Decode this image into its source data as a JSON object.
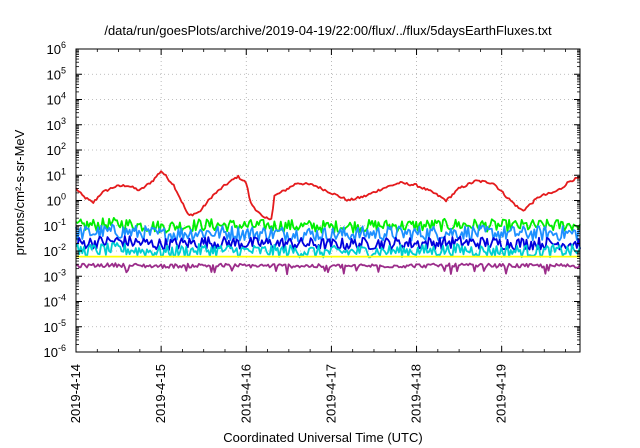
{
  "chart_data": {
    "type": "line",
    "title": "/data/run/goesPlots/archive/2019-04-19/22:00/flux/../flux/5daysEarthFluxes.txt",
    "xlabel": "Coordinated Universal Time (UTC)",
    "ylabel": "protons/cm²-s-sr-MeV",
    "y_scale": "log",
    "ylim": [
      1e-06,
      1000000.0
    ],
    "xlim": [
      "2019-04-14",
      "2019-04-19 22:00"
    ],
    "x_days_span": 5.92,
    "grid": true,
    "legend": "none",
    "x_ticks": [
      {
        "day": 0,
        "label": "2019-4-14"
      },
      {
        "day": 1,
        "label": "2019-4-15"
      },
      {
        "day": 2,
        "label": "2019-4-16"
      },
      {
        "day": 3,
        "label": "2019-4-17"
      },
      {
        "day": 4,
        "label": "2019-4-18"
      },
      {
        "day": 5,
        "label": "2019-4-19"
      }
    ],
    "y_ticks": [
      {
        "exp": -6,
        "label": "10",
        "sup": "-6"
      },
      {
        "exp": -5,
        "label": "10",
        "sup": "-5"
      },
      {
        "exp": -4,
        "label": "10",
        "sup": "-4"
      },
      {
        "exp": -3,
        "label": "10",
        "sup": "-3"
      },
      {
        "exp": -2,
        "label": "10",
        "sup": "-2"
      },
      {
        "exp": -1,
        "label": "10",
        "sup": "-1"
      },
      {
        "exp": 0,
        "label": "10",
        "sup": "0"
      },
      {
        "exp": 1,
        "label": "10",
        "sup": "1"
      },
      {
        "exp": 2,
        "label": "10",
        "sup": "2"
      },
      {
        "exp": 3,
        "label": "10",
        "sup": "3"
      },
      {
        "exp": 4,
        "label": "10",
        "sup": "4"
      },
      {
        "exp": 5,
        "label": "10",
        "sup": "5"
      },
      {
        "exp": 6,
        "label": "10",
        "sup": "6"
      }
    ],
    "series": [
      {
        "color": "#e41a1c",
        "x": [
          0,
          0.08,
          0.2,
          0.3,
          0.45,
          0.6,
          0.75,
          0.9,
          1.0,
          1.15,
          1.25,
          1.32,
          1.45,
          1.6,
          1.75,
          1.9,
          2.0,
          2.05,
          2.2,
          2.3,
          2.33,
          2.45,
          2.6,
          2.8,
          3.0,
          3.2,
          3.4,
          3.6,
          3.8,
          4.0,
          4.2,
          4.35,
          4.5,
          4.7,
          4.9,
          5.05,
          5.2,
          5.25,
          5.45,
          5.6,
          5.7,
          5.8,
          5.92
        ],
        "y": [
          3.0,
          1.5,
          0.8,
          2.0,
          3.5,
          4.0,
          2.5,
          6.0,
          15,
          4.0,
          0.8,
          0.25,
          0.35,
          1.5,
          4.0,
          9.0,
          5.0,
          0.8,
          0.2,
          0.2,
          1.5,
          2.5,
          5.0,
          4.0,
          2.0,
          1.0,
          1.5,
          3.0,
          5.0,
          4.0,
          2.0,
          1.0,
          3.0,
          6.0,
          5.0,
          1.5,
          0.5,
          0.4,
          1.5,
          2.0,
          3.0,
          6.0,
          8.0
        ]
      },
      {
        "color": "#00ee00",
        "x": [
          0,
          0.5,
          1.0,
          1.5,
          2.0,
          2.5,
          3.0,
          3.5,
          4.0,
          4.5,
          5.0,
          5.5,
          5.92
        ],
        "y": [
          0.1,
          0.12,
          0.09,
          0.11,
          0.1,
          0.1,
          0.09,
          0.1,
          0.1,
          0.11,
          0.1,
          0.1,
          0.11
        ]
      },
      {
        "color": "#1e90ff",
        "x": [
          0,
          0.5,
          1.0,
          1.5,
          2.0,
          2.5,
          3.0,
          3.5,
          4.0,
          4.5,
          5.0,
          5.5,
          5.92
        ],
        "y": [
          0.05,
          0.06,
          0.045,
          0.055,
          0.05,
          0.05,
          0.045,
          0.05,
          0.05,
          0.055,
          0.05,
          0.05,
          0.05
        ]
      },
      {
        "color": "#0000dd",
        "x": [
          0,
          0.5,
          1.0,
          1.5,
          2.0,
          2.5,
          3.0,
          3.5,
          4.0,
          4.5,
          5.0,
          5.5,
          5.92
        ],
        "y": [
          0.02,
          0.025,
          0.018,
          0.022,
          0.02,
          0.02,
          0.018,
          0.02,
          0.02,
          0.022,
          0.02,
          0.02,
          0.02
        ]
      },
      {
        "color": "#00ced1",
        "x": [
          0,
          0.5,
          1.0,
          1.5,
          2.0,
          2.5,
          3.0,
          3.5,
          4.0,
          4.5,
          5.0,
          5.5,
          5.92
        ],
        "y": [
          0.01,
          0.012,
          0.009,
          0.011,
          0.01,
          0.01,
          0.009,
          0.01,
          0.01,
          0.011,
          0.01,
          0.01,
          0.01
        ]
      },
      {
        "color": "#ffff00",
        "x": [
          0,
          5.92
        ],
        "y": [
          0.006,
          0.006
        ]
      },
      {
        "color": "#9b2d8a",
        "x": [
          0,
          0.5,
          1.0,
          1.5,
          2.0,
          2.5,
          3.0,
          3.5,
          4.0,
          4.5,
          5.0,
          5.5,
          5.92
        ],
        "y": [
          0.0026,
          0.0028,
          0.0025,
          0.0027,
          0.0026,
          0.0026,
          0.0025,
          0.0026,
          0.0026,
          0.0027,
          0.0026,
          0.0026,
          0.0026
        ]
      }
    ]
  }
}
